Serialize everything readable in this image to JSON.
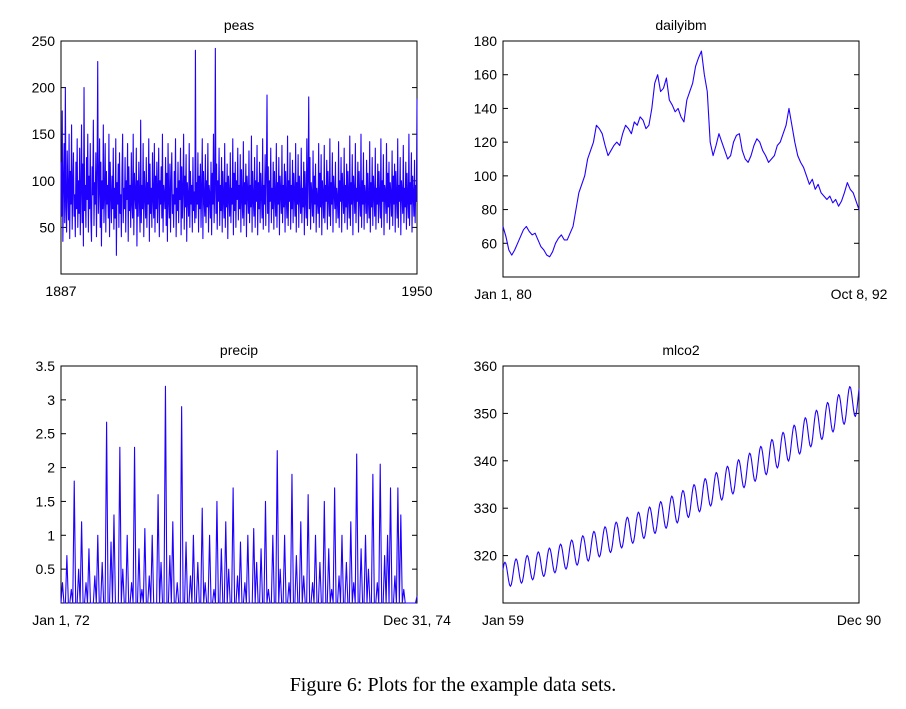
{
  "caption": "Figure 6: Plots for the example data sets.",
  "line_color": "#1f00ff",
  "chart_data": [
    {
      "type": "line",
      "title": "peas",
      "xlabel": "",
      "ylabel": "",
      "x_tick_labels": [
        "1887",
        "1950"
      ],
      "xlim": [
        1887,
        1950
      ],
      "ylim": [
        0,
        250
      ],
      "y_ticks": [
        50,
        100,
        150,
        200,
        250
      ],
      "series": [
        {
          "x_start": 1887,
          "x_end": 1950,
          "values": [
            120,
            62,
            175,
            35,
            98,
            140,
            55,
            200,
            72,
            45,
            132,
            88,
            58,
            150,
            38,
            110,
            75,
            160,
            48,
            95,
            130,
            62,
            85,
            40,
            120,
            70,
            145,
            50,
            100,
            65,
            135,
            42,
            90,
            160,
            55,
            118,
            30,
            200,
            68,
            95,
            50,
            125,
            80,
            150,
            45,
            105,
            70,
            140,
            60,
            35,
            115,
            85,
            165,
            52,
            98,
            75,
            130,
            40,
            110,
            228,
            65,
            90,
            145,
            50,
            120,
            30,
            100,
            70,
            160,
            55,
            85,
            140,
            45,
            110,
            75,
            95,
            60,
            150,
            40,
            120,
            88,
            55,
            105,
            70,
            135,
            48,
            92,
            60,
            145,
            20,
            98,
            75,
            118,
            50,
            130,
            65,
            85,
            40,
            110,
            150,
            55,
            92,
            70,
            125,
            45,
            100,
            80,
            140,
            35,
            115,
            68,
            95,
            50,
            130,
            75,
            60,
            150,
            42,
            108,
            85,
            70,
            135,
            30,
            100,
            62,
            120,
            78,
            45,
            165,
            55,
            95,
            70,
            140,
            40,
            110,
            85,
            60,
            125,
            50,
            98,
            75,
            145,
            35,
            118,
            65,
            92,
            50,
            130,
            80,
            60,
            140,
            45,
            105,
            70,
            120,
            55,
            90,
            135,
            40,
            100,
            75,
            115,
            60,
            150,
            45,
            95,
            85,
            70,
            125,
            52,
            108,
            35,
            140,
            78,
            60,
            118,
            45,
            98,
            130,
            65,
            85,
            50,
            110,
            75,
            145,
            40,
            92,
            68,
            120,
            55,
            100,
            80,
            135,
            42,
            115,
            60,
            90,
            150,
            48,
            105,
            72,
            128,
            35,
            98,
            82,
            62,
            140,
            50,
            110,
            75,
            95,
            45,
            125,
            68,
            88,
            55,
            240,
            60,
            98,
            75,
            130,
            45,
            105,
            70,
            118,
            50,
            92,
            145,
            38,
            110,
            80,
            62,
            128,
            55,
            100,
            72,
            140,
            45,
            95,
            85,
            60,
            120,
            42,
            108,
            75,
            150,
            55,
            90,
            242,
            65,
            118,
            48,
            100,
            78,
            135,
            52,
            95,
            68,
            125,
            45,
            110,
            80,
            60,
            140,
            50,
            98,
            72,
            118,
            38,
            105,
            85,
            62,
            130,
            55,
            92,
            75,
            145,
            42,
            108,
            68,
            120,
            50,
            100,
            80,
            135,
            58,
            95,
            70,
            128,
            45,
            112,
            82,
            60,
            142,
            52,
            98,
            75,
            118,
            40,
            105,
            88,
            65,
            132,
            55,
            95,
            72,
            148,
            45,
            110,
            80,
            62,
            125,
            50,
            100,
            78,
            138,
            42,
            98,
            70,
            120,
            55,
            108,
            85,
            60,
            145,
            48,
            95,
            75,
            128,
            52,
            105,
            192,
            65,
            115,
            45,
            100,
            78,
            135,
            55,
            92,
            70,
            120,
            48,
            110,
            82,
            62,
            140,
            50,
            98,
            75,
            125,
            42,
            105,
            88,
            65,
            138,
            55,
            95,
            72,
            118,
            45,
            110,
            80,
            60,
            148,
            52,
            100,
            78,
            130,
            48,
            95,
            70,
            122,
            55,
            108,
            85,
            62,
            140,
            45,
            98,
            75,
            128,
            50,
            105,
            82,
            65,
            135,
            55,
            92,
            72,
            120,
            42,
            110,
            80,
            60,
            145,
            52,
            100,
            190,
            70,
            125,
            48,
            98,
            85,
            62,
            132,
            55,
            105,
            75,
            118,
            45,
            92,
            80,
            65,
            140,
            50,
            108,
            72,
            128,
            42,
            100,
            85,
            60,
            138,
            55,
            95,
            78,
            122,
            48,
            110,
            82,
            62,
            145,
            52,
            98,
            75,
            130,
            45,
            105,
            88,
            70,
            120,
            55,
            92,
            80,
            60,
            142,
            50,
            100,
            78,
            125,
            45,
            108,
            85,
            65,
            135,
            55,
            95,
            72,
            118,
            48,
            110,
            82,
            60,
            148,
            52,
            98,
            75,
            128,
            42,
            105,
            88,
            65,
            140,
            55,
            92,
            78,
            120,
            45,
            110,
            80,
            62,
            150,
            50,
            100,
            75,
            130,
            48,
            95,
            85,
            65,
            122,
            55,
            108,
            78,
            60,
            142,
            45,
            98,
            72,
            125,
            52,
            105,
            85,
            62,
            135,
            48,
            92,
            75,
            118,
            55,
            110,
            80,
            60,
            145,
            50,
            100,
            78,
            128,
            42,
            95,
            88,
            65,
            140,
            55,
            108,
            72,
            120,
            48,
            98,
            85,
            62,
            132,
            52,
            105,
            75,
            118,
            45,
            110,
            82,
            60,
            145,
            50,
            95,
            78,
            125,
            42,
            100,
            88,
            65,
            138,
            55,
            92,
            72,
            120,
            48,
            108,
            80,
            60,
            150,
            52,
            98,
            75,
            130,
            45,
            105,
            85,
            62,
            122,
            55,
            95,
            78,
            188
          ]
        }
      ]
    },
    {
      "type": "line",
      "title": "dailyibm",
      "xlabel": "",
      "ylabel": "",
      "x_tick_labels": [
        "Jan 1, 80",
        "Oct 8, 92"
      ],
      "ylim": [
        40,
        180
      ],
      "y_ticks": [
        60,
        80,
        100,
        120,
        140,
        160,
        180
      ],
      "series": [
        {
          "x_start": "Jan 1, 80",
          "x_end": "Oct 8, 92",
          "values": [
            70,
            64,
            56,
            53,
            56,
            60,
            64,
            68,
            70,
            67,
            65,
            66,
            62,
            58,
            56,
            53,
            52,
            55,
            60,
            63,
            65,
            62,
            62,
            66,
            70,
            80,
            90,
            95,
            100,
            110,
            115,
            120,
            130,
            128,
            125,
            118,
            112,
            115,
            118,
            120,
            118,
            125,
            130,
            128,
            125,
            132,
            130,
            135,
            133,
            128,
            130,
            140,
            155,
            160,
            150,
            152,
            158,
            145,
            142,
            138,
            140,
            135,
            132,
            145,
            150,
            155,
            165,
            170,
            174,
            160,
            150,
            120,
            112,
            118,
            125,
            120,
            115,
            110,
            112,
            120,
            124,
            125,
            115,
            110,
            108,
            112,
            118,
            122,
            120,
            115,
            112,
            108,
            110,
            112,
            118,
            120,
            125,
            130,
            140,
            130,
            120,
            112,
            108,
            105,
            100,
            95,
            98,
            92,
            95,
            90,
            88,
            86,
            88,
            84,
            86,
            82,
            85,
            90,
            96,
            92,
            90,
            85,
            80
          ]
        }
      ]
    },
    {
      "type": "line",
      "title": "precip",
      "xlabel": "",
      "ylabel": "",
      "x_tick_labels": [
        "Jan 1, 72",
        "Dec 31, 74"
      ],
      "ylim": [
        0,
        3.5
      ],
      "y_ticks": [
        0.5,
        1,
        1.5,
        2,
        2.5,
        3,
        3.5
      ],
      "series": [
        {
          "x_start": "Jan 1, 72",
          "x_end": "Dec 31, 74",
          "values": [
            0,
            0.3,
            0,
            0,
            0.7,
            0,
            0,
            0.2,
            0,
            1.8,
            0,
            0,
            0.5,
            0,
            1.2,
            0,
            0,
            0.3,
            0,
            0.8,
            0,
            0,
            0,
            0.4,
            0,
            1.0,
            0,
            0,
            0.6,
            0,
            0,
            2.67,
            0,
            0,
            0.9,
            0,
            1.3,
            0,
            0,
            0,
            2.3,
            0,
            0.5,
            0,
            0,
            1.0,
            0,
            0,
            0.3,
            0,
            2.3,
            0,
            0,
            0.8,
            0,
            0.2,
            0,
            1.1,
            0,
            0,
            0.4,
            0,
            1.0,
            0,
            0,
            0,
            1.6,
            0,
            0.6,
            0,
            0,
            3.2,
            0,
            0,
            0.7,
            0,
            1.2,
            0,
            0,
            0.3,
            0,
            0,
            2.9,
            0,
            0,
            0.9,
            0,
            0,
            0.4,
            0,
            1.0,
            0,
            0,
            0.6,
            0,
            0,
            1.4,
            0,
            0.3,
            0,
            0,
            1.0,
            0,
            0,
            0.2,
            0,
            1.5,
            0,
            0,
            0.8,
            0,
            0,
            1.2,
            0,
            0.5,
            0,
            0,
            1.7,
            0,
            0,
            0.4,
            0,
            0.9,
            0,
            0,
            0.3,
            0,
            1.0,
            0,
            0,
            0,
            1.1,
            0,
            0.6,
            0,
            0,
            0.8,
            0,
            0,
            1.5,
            0,
            0.2,
            0,
            0,
            1.0,
            0,
            0,
            2.25,
            0,
            0.5,
            0,
            0,
            1.0,
            0,
            0,
            0.3,
            0,
            1.9,
            0,
            0,
            0.7,
            0,
            0,
            1.2,
            0,
            0.4,
            0,
            0,
            1.6,
            0,
            0,
            0.3,
            0,
            1.0,
            0,
            0,
            0.6,
            0,
            0,
            1.5,
            0,
            0,
            0.8,
            0,
            0.2,
            0,
            1.7,
            0,
            0,
            0.4,
            0,
            1.0,
            0,
            0,
            0.6,
            0,
            0,
            1.2,
            0,
            0.3,
            0,
            2.2,
            0,
            0,
            0.8,
            0,
            0,
            1.0,
            0,
            0.5,
            0,
            0,
            1.9,
            0,
            0,
            0.3,
            0,
            2.05,
            0,
            0,
            0.7,
            0,
            1.0,
            0,
            1.7,
            0,
            0,
            0.4,
            0,
            1.7,
            0,
            1.3,
            0,
            0.2,
            0,
            0,
            0,
            0,
            0,
            0,
            0,
            0,
            0.1
          ]
        }
      ]
    },
    {
      "type": "line",
      "title": "mlco2",
      "xlabel": "",
      "ylabel": "",
      "x_tick_labels": [
        "Jan 59",
        "Dec 90"
      ],
      "ylim": [
        310,
        360
      ],
      "y_ticks": [
        320,
        330,
        340,
        350,
        360
      ],
      "series": [
        {
          "x_start": "Jan 59",
          "x_end": "Dec 90",
          "trend": {
            "start": 315.8,
            "end": 353.5
          },
          "seasonal_amplitude": 3.0,
          "cycles": 32
        }
      ]
    }
  ]
}
